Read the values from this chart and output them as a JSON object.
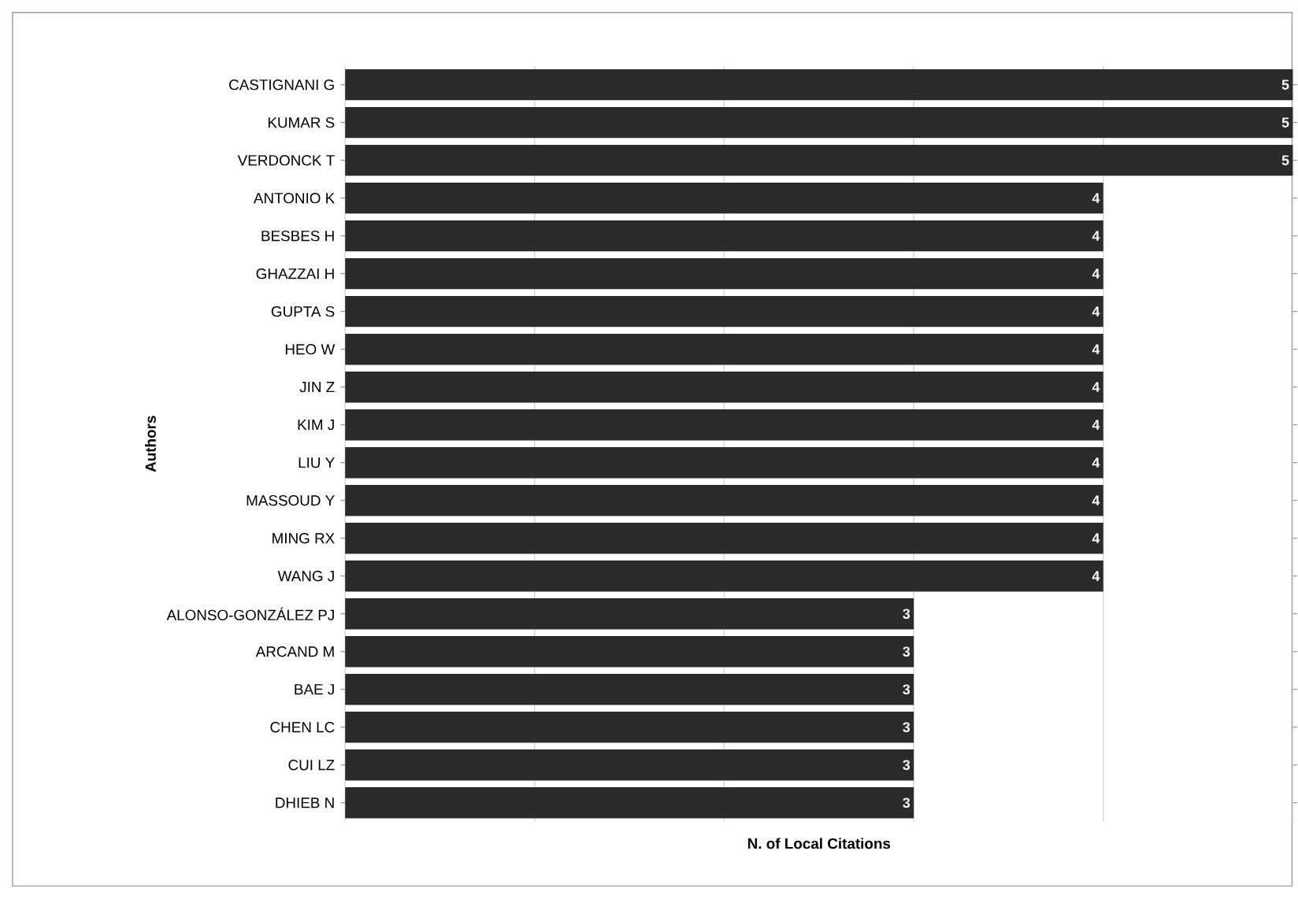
{
  "chart_data": {
    "type": "bar",
    "orientation": "horizontal",
    "categories": [
      "CASTIGNANI G",
      "KUMAR S",
      "VERDONCK T",
      "ANTONIO K",
      "BESBES H",
      "GHAZZAI H",
      "GUPTA S",
      "HEO W",
      "JIN Z",
      "KIM J",
      "LIU Y",
      "MASSOUD Y",
      "MING RX",
      "WANG J",
      "ALONSO-GONZÁLEZ PJ",
      "ARCAND M",
      "BAE J",
      "CHEN LC",
      "CUI LZ",
      "DHIEB N"
    ],
    "values": [
      5,
      5,
      5,
      4,
      4,
      4,
      4,
      4,
      4,
      4,
      4,
      4,
      4,
      4,
      3,
      3,
      3,
      3,
      3,
      3
    ],
    "color": "#2b2b2b",
    "xlim": [
      0,
      5
    ],
    "xticks": [
      {
        "value": 0,
        "label": null
      },
      {
        "value": 1,
        "label": null
      },
      {
        "value": 2,
        "label": null
      },
      {
        "value": 3,
        "label": null
      },
      {
        "value": 4,
        "label": null
      },
      {
        "value": 5,
        "label": null
      }
    ],
    "grid": "x",
    "data_labels": true,
    "tick_labels": "y",
    "xlabel": "N. of Local Citations",
    "ylabel": "Authors"
  }
}
